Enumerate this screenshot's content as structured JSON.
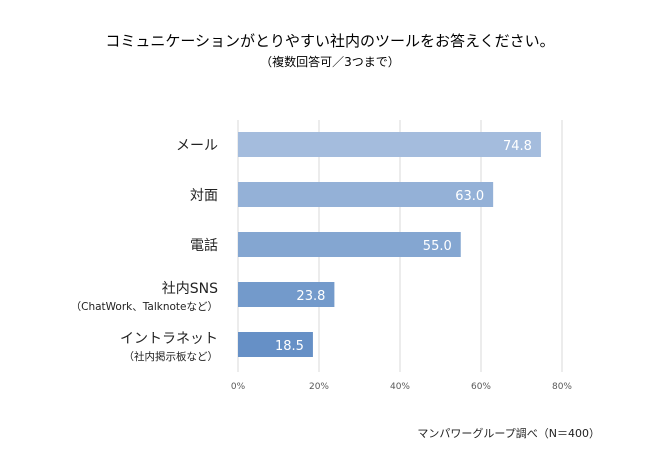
{
  "chart_data": {
    "type": "bar",
    "orientation": "horizontal",
    "title": "コミュニケーションがとりやすい社内のツールをお答えください。",
    "subtitle": "（複数回答可／3つまで）",
    "categories": [
      {
        "label": "メール",
        "sublabel": ""
      },
      {
        "label": "対面",
        "sublabel": ""
      },
      {
        "label": "電話",
        "sublabel": ""
      },
      {
        "label": "社内SNS",
        "sublabel": "（ChatWork、Talknoteなど）"
      },
      {
        "label": "イントラネット",
        "sublabel": "（社内掲示板など）"
      }
    ],
    "values": [
      74.8,
      63.0,
      55.0,
      23.8,
      18.5
    ],
    "data_labels": [
      "74.8",
      "63.0",
      "55.0",
      "23.8",
      "18.5"
    ],
    "xlim": [
      0,
      80
    ],
    "xticks": [
      "0%",
      "20%",
      "40%",
      "60%",
      "80%"
    ],
    "grid": true,
    "bar_colors": [
      "#a4bcdd",
      "#94b1d7",
      "#84a6d1",
      "#739acb",
      "#6690c6"
    ],
    "source": "マンパワーグループ調べ（N＝400）"
  }
}
